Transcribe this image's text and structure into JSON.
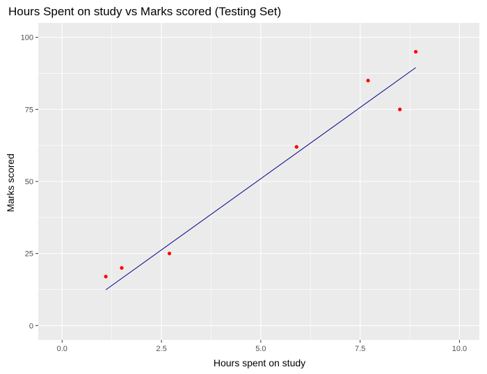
{
  "chart_data": {
    "type": "scatter",
    "title": "Hours Spent on study vs Marks scored (Testing Set)",
    "xlabel": "Hours spent on study",
    "ylabel": "Marks scored",
    "xlim": [
      -0.6,
      10.5
    ],
    "ylim": [
      -5,
      105
    ],
    "x_ticks": [
      0,
      2.5,
      5,
      7.5,
      10
    ],
    "x_tick_labels": [
      "0.0",
      "2.5",
      "5.0",
      "7.5",
      "10.0"
    ],
    "y_ticks": [
      0,
      25,
      50,
      75,
      100
    ],
    "y_tick_labels": [
      "0",
      "25",
      "50",
      "75",
      "100"
    ],
    "grid": true,
    "points": {
      "color": "#ff0000",
      "x": [
        1.1,
        1.5,
        2.7,
        5.9,
        7.7,
        8.5,
        8.9
      ],
      "y": [
        17,
        20,
        25,
        62,
        85,
        75,
        95
      ]
    },
    "fit_line": {
      "color": "#00008b",
      "x": [
        1.1,
        8.9
      ],
      "y": [
        12.4,
        89.5
      ]
    },
    "panel_color": "#ebebeb",
    "grid_color": "#ffffff"
  }
}
